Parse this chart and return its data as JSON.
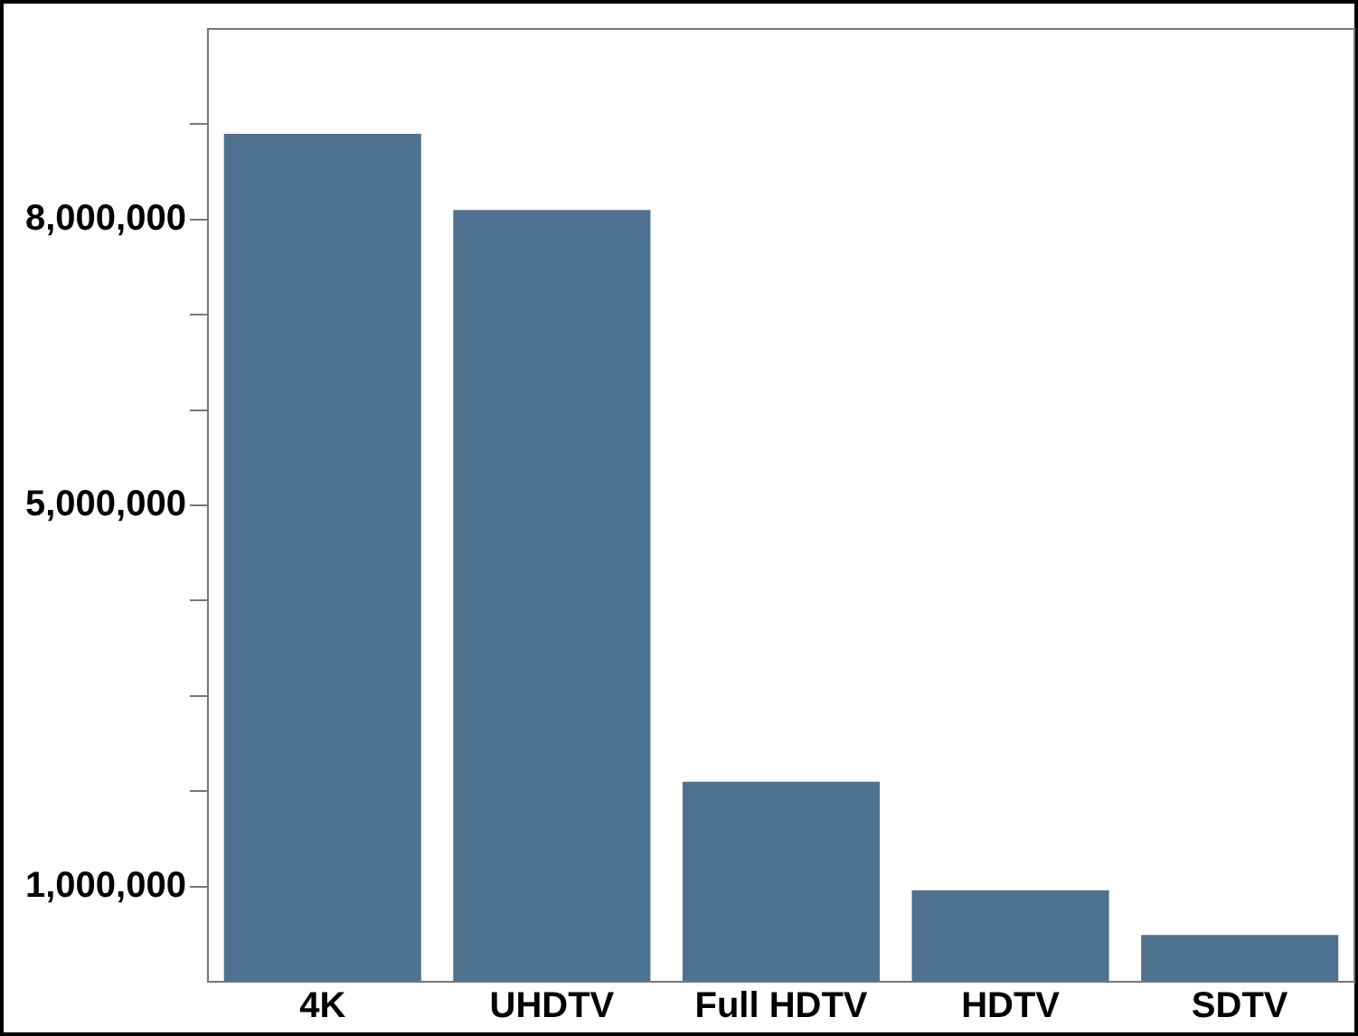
{
  "chart_data": {
    "type": "bar",
    "categories": [
      "4K",
      "UHDTV",
      "Full HDTV",
      "HDTV",
      "SDTV"
    ],
    "values": [
      8900000,
      8100000,
      2100000,
      960000,
      490000
    ],
    "color": "#4f7290",
    "ylim": [
      0,
      10000000
    ],
    "yticks": [
      {
        "value": 1000000,
        "label": "1,000,000"
      },
      {
        "value": 2000000,
        "label": null
      },
      {
        "value": 3000000,
        "label": null
      },
      {
        "value": 4000000,
        "label": null
      },
      {
        "value": 5000000,
        "label": "5,000,000"
      },
      {
        "value": 6000000,
        "label": null
      },
      {
        "value": 7000000,
        "label": null
      },
      {
        "value": 8000000,
        "label": "8,000,000"
      },
      {
        "value": 9000000,
        "label": null
      }
    ],
    "grid": false,
    "legend": false
  }
}
